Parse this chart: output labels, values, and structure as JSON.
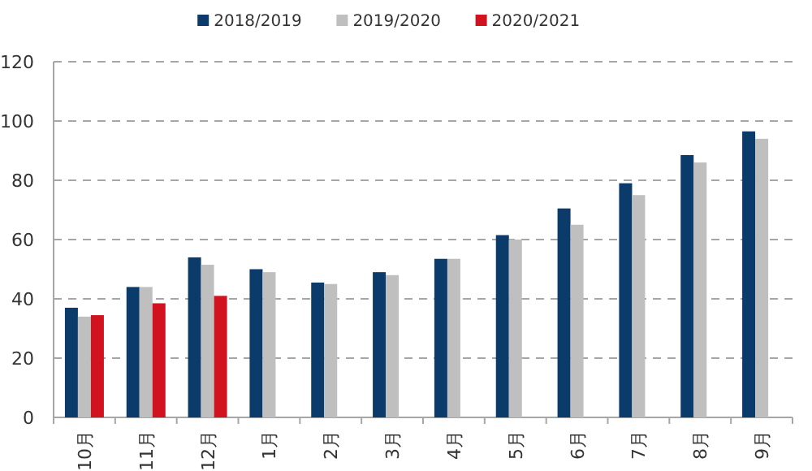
{
  "chart_data": {
    "type": "bar",
    "categories": [
      "10月",
      "11月",
      "12月",
      "1月",
      "2月",
      "3月",
      "4月",
      "5月",
      "6月",
      "7月",
      "8月",
      "9月"
    ],
    "series": [
      {
        "name": "2018/2019",
        "color": "#0b3b6b",
        "values": [
          37,
          44,
          54,
          50,
          45.5,
          49,
          53.5,
          61.5,
          70.5,
          79,
          88.5,
          96.5
        ]
      },
      {
        "name": "2019/2020",
        "color": "#bfbfbf",
        "values": [
          34,
          44,
          51.5,
          49,
          45,
          48,
          53.5,
          60,
          65,
          75,
          86,
          94
        ]
      },
      {
        "name": "2020/2021",
        "color": "#d1121f",
        "values": [
          34.5,
          38.5,
          41,
          null,
          null,
          null,
          null,
          null,
          null,
          null,
          null,
          null
        ]
      }
    ],
    "ylim": [
      0,
      120
    ],
    "yticks": [
      0,
      20,
      40,
      60,
      80,
      100,
      120
    ],
    "grid": "y",
    "legend": "top"
  }
}
